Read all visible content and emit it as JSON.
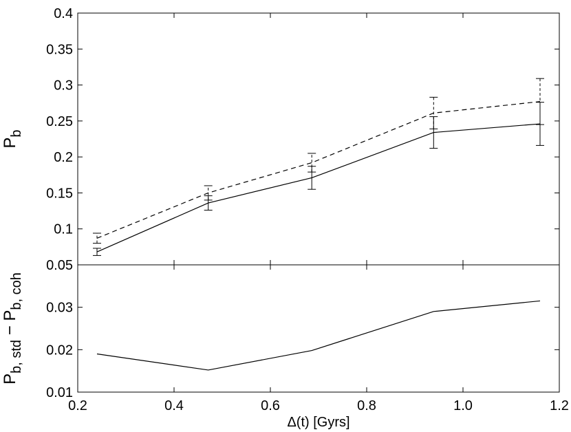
{
  "chart_data": [
    {
      "type": "line",
      "ylabel": {
        "text": "P",
        "sub": "b"
      },
      "xlim": [
        0.2,
        1.2
      ],
      "xticks": [
        0.2,
        0.4,
        0.6,
        0.8,
        {
          "value": 1,
          "label": "1.0"
        },
        1.2
      ],
      "ylim": [
        0.05,
        0.4
      ],
      "yticks": [
        0.05,
        0.1,
        0.15,
        0.2,
        0.25,
        0.3,
        0.35,
        0.4
      ],
      "x": [
        0.24,
        0.471,
        0.686,
        0.939,
        1.16
      ],
      "series": [
        {
          "color": "#000000",
          "linestyle": "solid",
          "values": [
            0.068,
            0.136,
            0.171,
            0.234,
            0.246
          ],
          "errors": [
            0.005,
            0.01,
            0.016,
            0.022,
            0.03
          ]
        },
        {
          "color": "#000000",
          "linestyle": "dashed",
          "values": [
            0.087,
            0.15,
            0.192,
            0.261,
            0.277
          ],
          "errors": [
            0.007,
            0.01,
            0.013,
            0.022,
            0.032
          ]
        }
      ]
    },
    {
      "type": "line",
      "ylabel": {
        "text": "P",
        "sub": "b, std",
        "text2": " − P",
        "sub2": "b, coh"
      },
      "xlabel": "Δ(t) [Gyrs]",
      "xlim": [
        0.2,
        1.2
      ],
      "xticks": [
        0.2,
        0.4,
        0.6,
        0.8,
        {
          "value": 1,
          "label": "1.0"
        },
        1.2
      ],
      "ylim": [
        0.01,
        0.04
      ],
      "yticks": [
        0.01,
        0.02,
        0.03
      ],
      "x": [
        0.24,
        0.471,
        0.686,
        0.939,
        1.16
      ],
      "series": [
        {
          "color": "#000000",
          "linestyle": "solid",
          "values": [
            0.019,
            0.0152,
            0.0198,
            0.029,
            0.0315
          ]
        }
      ]
    }
  ]
}
